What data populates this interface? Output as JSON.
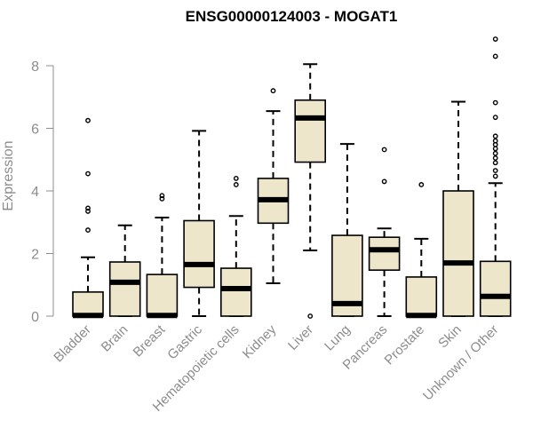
{
  "chart_data": {
    "type": "box",
    "title": "ENSG00000124003 - MOGAT1",
    "ylabel": "Expression",
    "xlabel": "",
    "ylim": [
      0,
      8.9
    ],
    "yticks": [
      0,
      2,
      4,
      6,
      8
    ],
    "colors": {
      "box_fill": "#ede6cb",
      "stroke": "#000000",
      "axis": "#8c8c8c"
    },
    "categories": [
      "Bladder",
      "Brain",
      "Breast",
      "Gastric",
      "Hematopoietic cells",
      "Kidney",
      "Liver",
      "Lung",
      "Pancreas",
      "Prostate",
      "Skin",
      "Unknown / Other"
    ],
    "boxes": [
      {
        "category": "Bladder",
        "q1": 0.0,
        "median": 0.02,
        "q3": 0.77,
        "whisker_low": 0.0,
        "whisker_high": 1.88,
        "outliers": [
          2.75,
          3.35,
          3.45,
          4.55,
          6.25
        ]
      },
      {
        "category": "Brain",
        "q1": 0.0,
        "median": 1.08,
        "q3": 1.73,
        "whisker_low": 0.0,
        "whisker_high": 2.9,
        "outliers": []
      },
      {
        "category": "Breast",
        "q1": 0.0,
        "median": 0.02,
        "q3": 1.33,
        "whisker_low": 0.0,
        "whisker_high": 3.15,
        "outliers": [
          3.75,
          3.85
        ]
      },
      {
        "category": "Gastric",
        "q1": 0.92,
        "median": 1.65,
        "q3": 3.05,
        "whisker_low": 0.0,
        "whisker_high": 5.92,
        "outliers": []
      },
      {
        "category": "Hematopoietic cells",
        "q1": 0.0,
        "median": 0.88,
        "q3": 1.53,
        "whisker_low": 0.0,
        "whisker_high": 3.2,
        "outliers": [
          4.2,
          4.4
        ]
      },
      {
        "category": "Kidney",
        "q1": 2.97,
        "median": 3.72,
        "q3": 4.4,
        "whisker_low": 1.05,
        "whisker_high": 6.55,
        "outliers": [
          7.2
        ]
      },
      {
        "category": "Liver",
        "q1": 4.92,
        "median": 6.33,
        "q3": 6.9,
        "whisker_low": 2.1,
        "whisker_high": 8.05,
        "outliers": [
          0.0
        ]
      },
      {
        "category": "Lung",
        "q1": 0.0,
        "median": 0.4,
        "q3": 2.58,
        "whisker_low": 0.0,
        "whisker_high": 5.5,
        "outliers": []
      },
      {
        "category": "Pancreas",
        "q1": 1.47,
        "median": 2.12,
        "q3": 2.52,
        "whisker_low": 0.0,
        "whisker_high": 2.8,
        "outliers": [
          4.3,
          5.32
        ]
      },
      {
        "category": "Prostate",
        "q1": 0.0,
        "median": 0.02,
        "q3": 1.25,
        "whisker_low": 0.0,
        "whisker_high": 2.47,
        "outliers": [
          4.2
        ]
      },
      {
        "category": "Skin",
        "q1": 0.0,
        "median": 1.7,
        "q3": 4.0,
        "whisker_low": 0.0,
        "whisker_high": 6.85,
        "outliers": []
      },
      {
        "category": "Unknown / Other",
        "q1": 0.0,
        "median": 0.63,
        "q3": 1.75,
        "whisker_low": 0.0,
        "whisker_high": 4.25,
        "outliers": [
          4.47,
          4.65,
          4.9,
          5.05,
          5.2,
          5.35,
          5.48,
          5.6,
          5.75,
          6.35,
          6.82,
          8.3,
          8.85
        ]
      }
    ]
  }
}
